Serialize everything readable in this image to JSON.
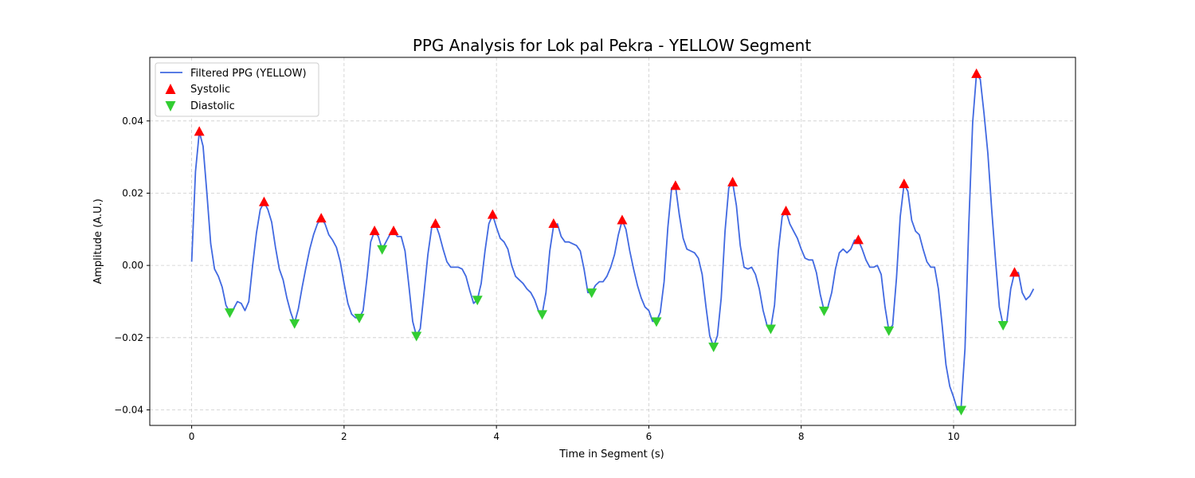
{
  "chart_data": {
    "type": "line",
    "title": "PPG Analysis for Lok pal Pekra - YELLOW Segment",
    "xlabel": "Time in Segment (s)",
    "ylabel": "Amplitude (A.U.)",
    "xlim": [
      -0.55,
      11.6
    ],
    "ylim": [
      -0.0443,
      0.0576
    ],
    "xticks": [
      0,
      2,
      4,
      6,
      8,
      10
    ],
    "yticks": [
      -0.04,
      -0.02,
      0.0,
      0.02,
      0.04
    ],
    "xtick_labels": [
      "0",
      "2",
      "4",
      "6",
      "8",
      "10"
    ],
    "ytick_labels": [
      "−0.04",
      "−0.02",
      "0.00",
      "0.02",
      "0.04"
    ],
    "grid": true,
    "legend_position": "upper-left",
    "series": [
      {
        "name": "Filtered PPG (YELLOW)",
        "kind": "line",
        "color": "#4169e1",
        "x": [
          0.0,
          0.05,
          0.1,
          0.15,
          0.2,
          0.25,
          0.3,
          0.35,
          0.4,
          0.45,
          0.5,
          0.55,
          0.6,
          0.65,
          0.7,
          0.75,
          0.8,
          0.85,
          0.9,
          0.95,
          1.0,
          1.05,
          1.1,
          1.15,
          1.2,
          1.25,
          1.3,
          1.35,
          1.4,
          1.45,
          1.5,
          1.55,
          1.6,
          1.65,
          1.7,
          1.75,
          1.8,
          1.85,
          1.9,
          1.95,
          2.0,
          2.05,
          2.1,
          2.15,
          2.2,
          2.25,
          2.3,
          2.35,
          2.4,
          2.45,
          2.5,
          2.55,
          2.6,
          2.65,
          2.7,
          2.75,
          2.8,
          2.85,
          2.9,
          2.95,
          3.0,
          3.05,
          3.1,
          3.15,
          3.2,
          3.25,
          3.3,
          3.35,
          3.4,
          3.45,
          3.5,
          3.55,
          3.6,
          3.65,
          3.7,
          3.75,
          3.8,
          3.85,
          3.9,
          3.95,
          4.0,
          4.05,
          4.1,
          4.15,
          4.2,
          4.25,
          4.3,
          4.35,
          4.4,
          4.45,
          4.5,
          4.55,
          4.6,
          4.65,
          4.7,
          4.75,
          4.8,
          4.85,
          4.9,
          4.95,
          5.0,
          5.05,
          5.1,
          5.15,
          5.2,
          5.25,
          5.3,
          5.35,
          5.4,
          5.45,
          5.5,
          5.55,
          5.6,
          5.65,
          5.7,
          5.75,
          5.8,
          5.85,
          5.9,
          5.95,
          6.0,
          6.05,
          6.1,
          6.15,
          6.2,
          6.25,
          6.3,
          6.35,
          6.4,
          6.45,
          6.5,
          6.55,
          6.6,
          6.65,
          6.7,
          6.75,
          6.8,
          6.85,
          6.9,
          6.95,
          7.0,
          7.05,
          7.1,
          7.15,
          7.2,
          7.25,
          7.3,
          7.35,
          7.4,
          7.45,
          7.5,
          7.55,
          7.6,
          7.65,
          7.7,
          7.75,
          7.8,
          7.85,
          7.9,
          7.95,
          8.0,
          8.05,
          8.1,
          8.15,
          8.2,
          8.25,
          8.3,
          8.35,
          8.4,
          8.45,
          8.5,
          8.55,
          8.6,
          8.65,
          8.7,
          8.75,
          8.8,
          8.85,
          8.9,
          8.95,
          9.0,
          9.05,
          9.1,
          9.15,
          9.2,
          9.25,
          9.3,
          9.35,
          9.4,
          9.45,
          9.5,
          9.55,
          9.6,
          9.65,
          9.7,
          9.75,
          9.8,
          9.85,
          9.9,
          9.95,
          10.0,
          10.05,
          10.1,
          10.15,
          10.2,
          10.25,
          10.3,
          10.35,
          10.4,
          10.45,
          10.5,
          10.55,
          10.6,
          10.65,
          10.7,
          10.75,
          10.8,
          10.85,
          10.9,
          10.95,
          11.0,
          11.05
        ],
        "y": [
          0.001,
          0.026,
          0.037,
          0.033,
          0.02,
          0.006,
          -0.001,
          -0.003,
          -0.006,
          -0.011,
          -0.013,
          -0.012,
          -0.01,
          -0.0105,
          -0.0125,
          -0.01,
          0.0,
          0.009,
          0.0155,
          0.0175,
          0.0155,
          0.012,
          0.005,
          -0.001,
          -0.004,
          -0.009,
          -0.013,
          -0.016,
          -0.012,
          -0.006,
          -0.0005,
          0.0045,
          0.0085,
          0.0115,
          0.013,
          0.0115,
          0.0085,
          0.007,
          0.005,
          0.001,
          -0.005,
          -0.0105,
          -0.0135,
          -0.0145,
          -0.0145,
          -0.0125,
          -0.0035,
          0.0065,
          0.0095,
          0.008,
          0.0045,
          0.0065,
          0.0085,
          0.0095,
          0.008,
          0.008,
          0.004,
          -0.0055,
          -0.0155,
          -0.0195,
          -0.0175,
          -0.0075,
          0.003,
          0.0105,
          0.0115,
          0.0085,
          0.0045,
          0.001,
          -0.0005,
          -0.0005,
          -0.0005,
          -0.001,
          -0.003,
          -0.007,
          -0.0105,
          -0.0095,
          -0.005,
          0.004,
          0.0115,
          0.014,
          0.0105,
          0.0075,
          0.0065,
          0.0045,
          0.0,
          -0.003,
          -0.004,
          -0.005,
          -0.0065,
          -0.0075,
          -0.0095,
          -0.0125,
          -0.0135,
          -0.0075,
          0.004,
          0.011,
          0.0115,
          0.008,
          0.0065,
          0.0065,
          0.006,
          0.0055,
          0.004,
          -0.001,
          -0.0075,
          -0.0075,
          -0.0055,
          -0.0045,
          -0.0045,
          -0.003,
          -0.0005,
          0.003,
          0.0085,
          0.0125,
          0.01,
          0.004,
          -0.001,
          -0.0055,
          -0.009,
          -0.0115,
          -0.0125,
          -0.0155,
          -0.0155,
          -0.013,
          -0.0045,
          0.0105,
          0.0215,
          0.022,
          0.014,
          0.0075,
          0.0045,
          0.004,
          0.0035,
          0.002,
          -0.0025,
          -0.0115,
          -0.0195,
          -0.0225,
          -0.0195,
          -0.009,
          0.0095,
          0.0215,
          0.023,
          0.0165,
          0.0055,
          -0.0005,
          -0.001,
          -0.0005,
          -0.0025,
          -0.0065,
          -0.0125,
          -0.0165,
          -0.0175,
          -0.011,
          0.004,
          0.0135,
          0.015,
          0.0115,
          0.0095,
          0.0075,
          0.0045,
          0.002,
          0.0015,
          0.0015,
          -0.002,
          -0.008,
          -0.0125,
          -0.0115,
          -0.0075,
          -0.001,
          0.0035,
          0.0045,
          0.0035,
          0.0045,
          0.007,
          0.007,
          0.0045,
          0.0015,
          -0.0005,
          -0.0005,
          0.0,
          -0.0025,
          -0.0115,
          -0.018,
          -0.0165,
          -0.0035,
          0.0135,
          0.0225,
          0.0205,
          0.0125,
          0.0095,
          0.0085,
          0.0045,
          0.001,
          -0.0005,
          -0.0005,
          -0.0065,
          -0.0165,
          -0.0275,
          -0.0335,
          -0.0365,
          -0.04,
          -0.039,
          -0.023,
          0.0115,
          0.0395,
          0.053,
          0.0515,
          0.042,
          0.031,
          0.0155,
          0.0015,
          -0.0115,
          -0.0165,
          -0.0155,
          -0.0065,
          -0.002,
          -0.002,
          -0.0075,
          -0.0095,
          -0.0085,
          -0.0065
        ]
      },
      {
        "name": "Systolic",
        "kind": "marker",
        "marker": "triangle-up",
        "color": "#ff0000",
        "x": [
          0.1,
          0.95,
          1.7,
          2.4,
          2.65,
          3.2,
          3.95,
          4.75,
          5.65,
          6.35,
          7.1,
          7.8,
          8.75,
          9.35,
          10.3,
          10.8
        ],
        "y": [
          0.037,
          0.0175,
          0.013,
          0.0095,
          0.0095,
          0.0115,
          0.014,
          0.0115,
          0.0125,
          0.022,
          0.023,
          0.015,
          0.007,
          0.0225,
          0.053,
          -0.002
        ]
      },
      {
        "name": "Diastolic",
        "kind": "marker",
        "marker": "triangle-down",
        "color": "#32cd32",
        "x": [
          0.5,
          1.35,
          2.2,
          2.5,
          2.95,
          3.75,
          4.6,
          5.25,
          6.1,
          6.85,
          7.6,
          8.3,
          9.15,
          10.1,
          10.65
        ],
        "y": [
          -0.013,
          -0.016,
          -0.0145,
          0.0045,
          -0.0195,
          -0.0095,
          -0.0135,
          -0.0075,
          -0.0155,
          -0.0225,
          -0.0175,
          -0.0125,
          -0.018,
          -0.04,
          -0.0165
        ]
      }
    ]
  }
}
